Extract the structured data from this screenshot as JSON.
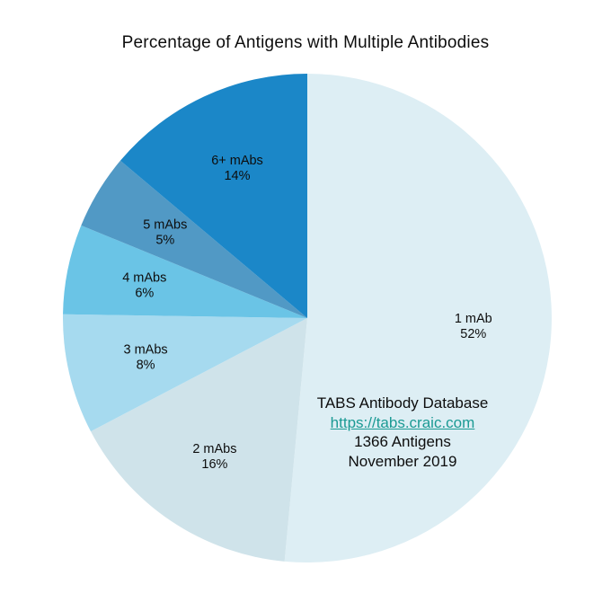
{
  "chart_data": {
    "type": "pie",
    "title": "Percentage of Antigens with Multiple Antibodies",
    "start_angle": "12-oclock",
    "direction": "clockwise",
    "legend": "none (labels drawn on slices)",
    "slices": [
      {
        "label": "1 mAb",
        "pct_label": "52%",
        "value": 52,
        "color": "#ddeef4"
      },
      {
        "label": "2 mAbs",
        "pct_label": "16%",
        "value": 16,
        "color": "#cfe3ea"
      },
      {
        "label": "3 mAbs",
        "pct_label": "8%",
        "value": 8,
        "color": "#a6daef"
      },
      {
        "label": "4 mAbs",
        "pct_label": "6%",
        "value": 6,
        "color": "#6ac4e6"
      },
      {
        "label": "5 mAbs",
        "pct_label": "5%",
        "value": 5,
        "color": "#5199c5"
      },
      {
        "label": "6+ mAbs",
        "pct_label": "14%",
        "value": 14,
        "color": "#1b87c8"
      }
    ],
    "annotation": {
      "database": "TABS Antibody Database",
      "url": "https://tabs.craic.com",
      "antigens": "1366 Antigens",
      "date": "November 2019"
    },
    "colors": {
      "link": "#1b9a94",
      "text": "#0d0d0d",
      "background": "#ffffff"
    }
  }
}
